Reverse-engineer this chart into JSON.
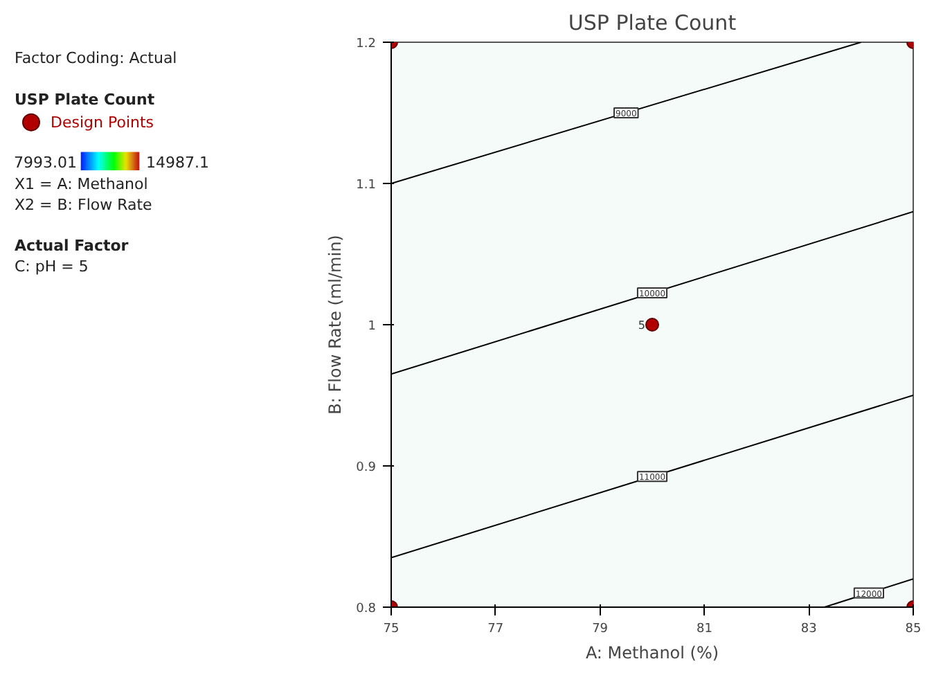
{
  "chart_data": {
    "type": "line",
    "title": "USP Plate Count",
    "xlabel": "A: Methanol (%)",
    "ylabel": "B: Flow Rate (ml/min)",
    "legend_title": "USP Plate Count",
    "legend": "left",
    "xlim": [
      75,
      85
    ],
    "xticks": [
      75,
      77,
      79,
      81,
      83,
      85
    ],
    "ylim": [
      0.8,
      1.2
    ],
    "yticks": [
      0.8,
      0.9,
      1,
      1.1,
      1.2
    ],
    "grid": false,
    "series": [
      {
        "type": "line",
        "name": "9000",
        "color": "#000000",
        "x": [
          75,
          84
        ],
        "values": [
          1.1,
          1.2
        ]
      },
      {
        "type": "line",
        "name": "10000",
        "color": "#000000",
        "x": [
          75,
          85
        ],
        "values": [
          0.965,
          1.08
        ]
      },
      {
        "type": "line",
        "name": "11000",
        "color": "#000000",
        "x": [
          75,
          85
        ],
        "values": [
          0.835,
          0.95
        ]
      },
      {
        "type": "line",
        "name": "12000",
        "color": "#000000",
        "x": [
          83.3,
          85
        ],
        "values": [
          0.8,
          0.82
        ]
      },
      {
        "type": "scatter",
        "name": "Design Points",
        "color": "#b00000",
        "marker": "circle",
        "x": [
          75,
          85,
          80,
          75,
          85
        ],
        "values": [
          1.2,
          1.2,
          1.0,
          0.8,
          0.8
        ]
      }
    ],
    "annotations": [
      "Factor Coding: Actual",
      "7993.01",
      "14987.1",
      "X1 = A: Methanol",
      "X2 = B: Flow Rate",
      "Actual Factor",
      "C: pH = 5",
      {
        "text": "5",
        "x": 80,
        "y": 1.0
      }
    ]
  }
}
